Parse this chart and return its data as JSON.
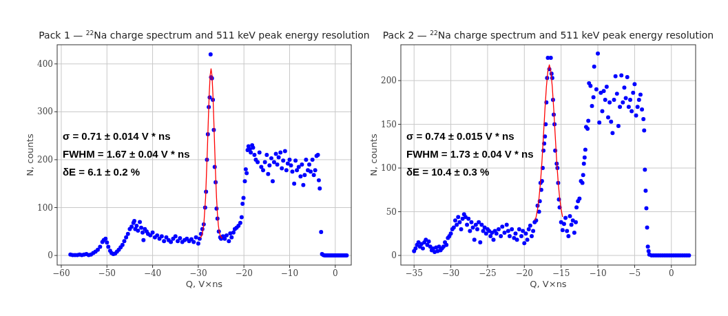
{
  "chart_data": [
    {
      "type": "scatter",
      "title": "Pack 1 — $^{22}$Na charge spectrum and 511 keV peak energy resolution",
      "xlabel": "Q, V×ns",
      "ylabel": "N, counts",
      "xlim": [
        -60.9,
        3.5
      ],
      "ylim": [
        -20,
        440
      ],
      "xticks": [
        -60,
        -50,
        -40,
        -30,
        -20,
        -10,
        0
      ],
      "yticks": [
        0,
        100,
        200,
        300,
        400
      ],
      "grid": true,
      "marker": "circle",
      "annotations": [
        "σ = 0.71 ± 0.014 V * ns",
        "FWHM = 1.67 ± 0.04 V * ns",
        "δE = 6.1 ± 0.2 %"
      ],
      "series": [
        {
          "color": "#0000ff",
          "x": [
            -58,
            -57.5,
            -57,
            -56.5,
            -56,
            -55.5,
            -55,
            -54.5,
            -54,
            -53.5,
            -53,
            -52.5,
            -52,
            -51.5,
            -51,
            -50.7,
            -50.3,
            -50,
            -49.7,
            -49.3,
            -49,
            -48.6,
            -48.2,
            -47.8,
            -47.4,
            -47,
            -46.6,
            -46.2,
            -45.8,
            -45.4,
            -45,
            -44.6,
            -44.2,
            -44,
            -43.8,
            -43.5,
            -43.2,
            -42.8,
            -42.5,
            -42.2,
            -42,
            -41.7,
            -41.3,
            -41,
            -40.5,
            -40,
            -39.5,
            -39,
            -38.5,
            -38,
            -37.5,
            -37,
            -36.5,
            -36,
            -35.5,
            -35,
            -34.5,
            -34,
            -33.5,
            -33,
            -32.5,
            -32,
            -31.5,
            -31,
            -30.5,
            -30,
            -29.7,
            -29.4,
            -29.1,
            -28.8,
            -28.5,
            -28.3,
            -28.1,
            -27.9,
            -27.7,
            -27.5,
            -27.3,
            -27.2,
            -27,
            -26.8,
            -26.6,
            -26.4,
            -26.2,
            -26,
            -25.8,
            -25.5,
            -25.2,
            -25,
            -24.6,
            -24.2,
            -23.8,
            -23.3,
            -23,
            -22.7,
            -22.3,
            -22,
            -21.6,
            -21.2,
            -20.8,
            -20.5,
            -20.3,
            -20.1,
            -19.8,
            -19.6,
            -19.4,
            -19.2,
            -19,
            -18.7,
            -18.5,
            -18.2,
            -18,
            -17.7,
            -17.4,
            -17,
            -16.6,
            -16.2,
            -15.8,
            -15.4,
            -15,
            -14.7,
            -14.4,
            -14,
            -13.7,
            -13.4,
            -13,
            -12.7,
            -12.4,
            -12,
            -11.7,
            -11.4,
            -11,
            -10.7,
            -10.4,
            -10,
            -9.7,
            -9.4,
            -9,
            -8.7,
            -8.4,
            -8,
            -7.6,
            -7.3,
            -7,
            -6.7,
            -6.4,
            -6,
            -5.7,
            -5.4,
            -5,
            -4.7,
            -4.4,
            -4.1,
            -3.8,
            -3.6,
            -3.4,
            -3.1,
            -2.9,
            -2.6,
            -2.3,
            -2,
            -1.7,
            -1.4,
            -1.1,
            -0.8,
            -0.5,
            -0.2,
            0.1,
            0.4,
            0.7,
            1,
            1.3,
            1.6,
            1.9,
            2.2,
            2.5
          ],
          "values": [
            2,
            1,
            1,
            1,
            2,
            1,
            2,
            3,
            1,
            2,
            5,
            8,
            12,
            18,
            28,
            32,
            35,
            27,
            18,
            10,
            5,
            3,
            4,
            8,
            12,
            17,
            22,
            30,
            38,
            45,
            55,
            60,
            68,
            72,
            55,
            62,
            52,
            70,
            58,
            48,
            32,
            55,
            50,
            45,
            42,
            48,
            38,
            42,
            35,
            40,
            30,
            38,
            32,
            28,
            35,
            40,
            30,
            36,
            28,
            32,
            35,
            30,
            34,
            28,
            38,
            25,
            35,
            45,
            55,
            65,
            100,
            133,
            200,
            253,
            310,
            330,
            420,
            372,
            370,
            325,
            262,
            185,
            153,
            98,
            77,
            50,
            38,
            35,
            40,
            35,
            42,
            30,
            46,
            38,
            48,
            55,
            58,
            62,
            68,
            80,
            108,
            120,
            155,
            180,
            172,
            220,
            228,
            222,
            215,
            230,
            225,
            210,
            200,
            195,
            215,
            185,
            178,
            195,
            210,
            170,
            188,
            203,
            155,
            195,
            212,
            190,
            205,
            215,
            182,
            198,
            218,
            178,
            192,
            200,
            188,
            175,
            150,
            198,
            178,
            185,
            165,
            190,
            147,
            168,
            200,
            178,
            190,
            175,
            200,
            168,
            178,
            208,
            210,
            157,
            140,
            49,
            3,
            1,
            0,
            0,
            0,
            0,
            0,
            0,
            0,
            0,
            0,
            0,
            0,
            0,
            0,
            0,
            0,
            0,
            0
          ]
        },
        {
          "type": "line",
          "marker": "none",
          "color": "#ff0000",
          "x": [
            -29.6,
            -29.2,
            -28.8,
            -28.4,
            -28,
            -27.8,
            -27.6,
            -27.4,
            -27.2,
            -27,
            -26.8,
            -26.6,
            -26.4,
            -26.2,
            -26,
            -25.8,
            -25.6,
            -25.4,
            -25.2,
            -24.8
          ],
          "values": [
            36,
            42,
            63,
            120,
            223,
            283,
            338,
            376,
            390,
            376,
            338,
            283,
            223,
            167,
            120,
            86,
            63,
            49,
            42,
            36
          ]
        }
      ]
    },
    {
      "type": "scatter",
      "title": "Pack 2 — $^{22}$Na charge spectrum and 511 keV peak energy resolution",
      "xlabel": "Q, V×ns",
      "ylabel": "N, counts",
      "xlim": [
        -36.8,
        3.3
      ],
      "ylim": [
        -11,
        241
      ],
      "xticks": [
        -35,
        -30,
        -25,
        -20,
        -15,
        -10,
        -5,
        0
      ],
      "yticks": [
        0,
        50,
        100,
        150,
        200
      ],
      "grid": true,
      "marker": "circle",
      "annotations": [
        "σ = 0.74 ± 0.015 V * ns",
        "FWHM = 1.73 ± 0.04 V * ns",
        "δE = 10.4 ± 0.3 %"
      ],
      "series": [
        {
          "color": "#0000ff",
          "x": [
            -35,
            -34.8,
            -34.6,
            -34.4,
            -34.2,
            -34,
            -33.8,
            -33.6,
            -33.4,
            -33.2,
            -33,
            -32.8,
            -32.6,
            -32.4,
            -32.2,
            -32,
            -31.8,
            -31.6,
            -31.4,
            -31.2,
            -31,
            -30.8,
            -30.6,
            -30.4,
            -30.2,
            -30,
            -29.8,
            -29.6,
            -29.4,
            -29.2,
            -29,
            -28.8,
            -28.6,
            -28.4,
            -28.2,
            -28,
            -27.8,
            -27.6,
            -27.4,
            -27.2,
            -27,
            -26.8,
            -26.6,
            -26.4,
            -26.2,
            -26,
            -25.8,
            -25.6,
            -25.4,
            -25.2,
            -25,
            -24.8,
            -24.6,
            -24.4,
            -24.2,
            -24,
            -23.8,
            -23.5,
            -23.2,
            -23,
            -22.7,
            -22.4,
            -22.2,
            -22,
            -21.7,
            -21.4,
            -21.2,
            -21,
            -20.7,
            -20.4,
            -20.2,
            -20,
            -19.8,
            -19.6,
            -19.4,
            -19.2,
            -19,
            -18.8,
            -18.6,
            -18.4,
            -18.2,
            -18,
            -17.9,
            -17.8,
            -17.7,
            -17.6,
            -17.5,
            -17.4,
            -17.3,
            -17.2,
            -17.1,
            -17,
            -16.9,
            -16.8,
            -16.6,
            -16.4,
            -16.3,
            -16.2,
            -16.1,
            -16,
            -15.9,
            -15.8,
            -15.6,
            -15.5,
            -15.4,
            -15.3,
            -15.2,
            -15,
            -14.8,
            -14.6,
            -14.4,
            -14.2,
            -14,
            -13.8,
            -13.6,
            -13.4,
            -13.2,
            -13,
            -12.9,
            -12.7,
            -12.5,
            -12.3,
            -12.1,
            -12,
            -11.9,
            -11.8,
            -11.7,
            -11.6,
            -11.4,
            -11.3,
            -11.2,
            -11,
            -10.8,
            -10.6,
            -10.5,
            -10.2,
            -10,
            -9.8,
            -9.6,
            -9.4,
            -9.2,
            -9,
            -8.8,
            -8.6,
            -8.4,
            -8.2,
            -8,
            -7.8,
            -7.6,
            -7.4,
            -7.2,
            -7,
            -6.8,
            -6.6,
            -6.4,
            -6.2,
            -6,
            -5.8,
            -5.6,
            -5.4,
            -5.2,
            -5,
            -4.8,
            -4.6,
            -4.4,
            -4.2,
            -4,
            -3.8,
            -3.7,
            -3.6,
            -3.5,
            -3.4,
            -3.3,
            -3.2,
            -3.1,
            -3,
            -2.7,
            -2.4,
            -2.1,
            -1.8,
            -1.5,
            -1.2,
            -0.9,
            -0.6,
            -0.3,
            0,
            0.3,
            0.6,
            0.9,
            1.2,
            1.5,
            1.8,
            2.1,
            2.4
          ],
          "values": [
            5,
            8,
            12,
            15,
            10,
            13,
            8,
            15,
            18,
            12,
            16,
            10,
            6,
            8,
            4,
            9,
            5,
            10,
            6,
            8,
            10,
            15,
            12,
            20,
            22,
            25,
            30,
            32,
            40,
            35,
            44,
            38,
            30,
            42,
            47,
            44,
            35,
            42,
            28,
            38,
            32,
            18,
            35,
            30,
            38,
            15,
            35,
            28,
            32,
            25,
            30,
            28,
            22,
            26,
            18,
            28,
            25,
            30,
            22,
            33,
            26,
            35,
            28,
            22,
            30,
            20,
            25,
            18,
            30,
            22,
            28,
            14,
            25,
            18,
            30,
            34,
            22,
            28,
            38,
            40,
            57,
            50,
            62,
            83,
            75,
            85,
            100,
            120,
            128,
            136,
            150,
            175,
            203,
            226,
            213,
            226,
            208,
            203,
            178,
            161,
            150,
            120,
            105,
            100,
            83,
            64,
            55,
            38,
            29,
            36,
            43,
            28,
            22,
            45,
            35,
            40,
            26,
            38,
            55,
            62,
            65,
            85,
            83,
            92,
            105,
            112,
            121,
            147,
            145,
            154,
            197,
            194,
            171,
            181,
            216,
            190,
            231,
            152,
            186,
            165,
            188,
            178,
            193,
            158,
            175,
            153,
            140,
            178,
            205,
            185,
            148,
            170,
            206,
            175,
            192,
            180,
            204,
            170,
            178,
            165,
            186,
            196,
            160,
            170,
            178,
            184,
            167,
            156,
            143,
            98,
            74,
            54,
            32,
            10,
            5,
            1,
            0,
            0,
            0,
            0,
            0,
            0,
            0,
            0,
            0,
            0,
            0,
            0,
            0,
            0,
            0,
            0,
            0,
            0
          ]
        },
        {
          "type": "line",
          "marker": "none",
          "color": "#ff0000",
          "x": [
            -18.6,
            -18.4,
            -18.2,
            -18,
            -17.8,
            -17.6,
            -17.4,
            -17.2,
            -17,
            -16.8,
            -16.6,
            -16.4,
            -16.2,
            -16,
            -15.8,
            -15.6,
            -15.4,
            -15.2,
            -15,
            -14.8
          ],
          "values": [
            40,
            44,
            53,
            66,
            84,
            108,
            137,
            167,
            193,
            211,
            218,
            211,
            193,
            167,
            137,
            108,
            84,
            66,
            53,
            44
          ]
        }
      ]
    }
  ]
}
